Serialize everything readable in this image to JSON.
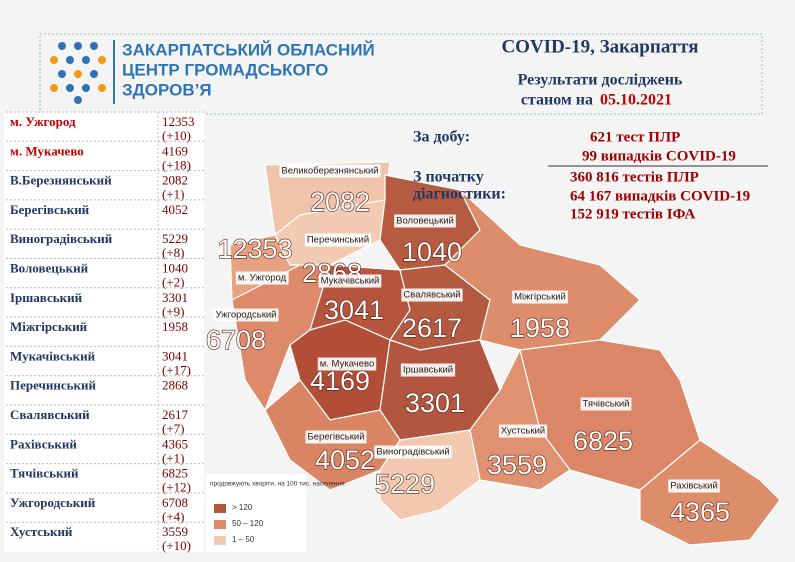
{
  "header": {
    "org": [
      "ЗАКАРПАТСЬКИЙ ОБЛАСНИЙ",
      "ЦЕНТР ГРОМАДСЬКОГО",
      "ЗДОРОВ’Я"
    ],
    "title": "COVID-19, Закарпаття",
    "subtitle": "Результати досліджень",
    "date_prefix": "станом на",
    "date": "05.10.2021"
  },
  "summary": {
    "day_label": "За добу:",
    "day_lines": [
      "621 тест ПЛР",
      "99 випадків COVID-19"
    ],
    "total_label": [
      "З початку",
      "діагностики:"
    ],
    "total_lines": [
      "360 816 тестів ПЛР",
      "64 167 випадків COVID-19",
      "152 919 тестів ІФА"
    ]
  },
  "table": {
    "rows": [
      {
        "name": "м. Ужгород",
        "total": "12353",
        "delta": "(+10)"
      },
      {
        "name": "м. Мукачево",
        "total": "4169",
        "delta": "(+18)"
      },
      {
        "name": "В.Березнянський",
        "total": "2082",
        "delta": "(+1)"
      },
      {
        "name": "Берегівський",
        "total": "4052"
      },
      {
        "name": "Виноградівський",
        "total": "5229",
        "delta": "(+8)"
      },
      {
        "name": "Воловецький",
        "total": "1040",
        "delta": "(+2)"
      },
      {
        "name": "Іршавський",
        "total": "3301",
        "delta": "(+9)"
      },
      {
        "name": "Міжгірський",
        "total": "1958"
      },
      {
        "name": "Мукачівський",
        "total": "3041",
        "delta": "(+17)"
      },
      {
        "name": "Перечинський",
        "total": "2868"
      },
      {
        "name": "Свалявський",
        "total": "2617",
        "delta": "(+7)"
      },
      {
        "name": "Рахівський",
        "total": "4365",
        "delta": "(+1)"
      },
      {
        "name": "Тячівський",
        "total": "6825",
        "delta": "(+12)"
      },
      {
        "name": "Ужгородський",
        "total": "6708",
        "delta": "(+4)"
      },
      {
        "name": "Хустський",
        "total": "3559",
        "delta": "(+10)"
      }
    ]
  },
  "map": {
    "regions": [
      {
        "label": "Великоберезнянський",
        "value": "2082"
      },
      {
        "label": "м. Ужгород",
        "value": "12353"
      },
      {
        "label": "Перечинський",
        "value": "2868"
      },
      {
        "label": "Воловецький",
        "value": "1040"
      },
      {
        "label": "Мукачівський",
        "value": "3041"
      },
      {
        "label": "м. Мукачево",
        "value": "4169"
      },
      {
        "label": "Ужгородський",
        "value": "6708"
      },
      {
        "label": "Свалявський",
        "value": "2617"
      },
      {
        "label": "Міжгірський",
        "value": "1958"
      },
      {
        "label": "Іршавський",
        "value": "3301"
      },
      {
        "label": "Берегівський",
        "value": "4052"
      },
      {
        "label": "Виноградівський",
        "value": "5229"
      },
      {
        "label": "Хустський",
        "value": "3559"
      },
      {
        "label": "Тячівський",
        "value": "6825"
      },
      {
        "label": "Рахівський",
        "value": "4365"
      }
    ]
  },
  "legend": {
    "title": "продовжують хворіти, на 100 тис. населення",
    "items": [
      "> 120",
      "50 – 120",
      "1 – 50"
    ]
  }
}
